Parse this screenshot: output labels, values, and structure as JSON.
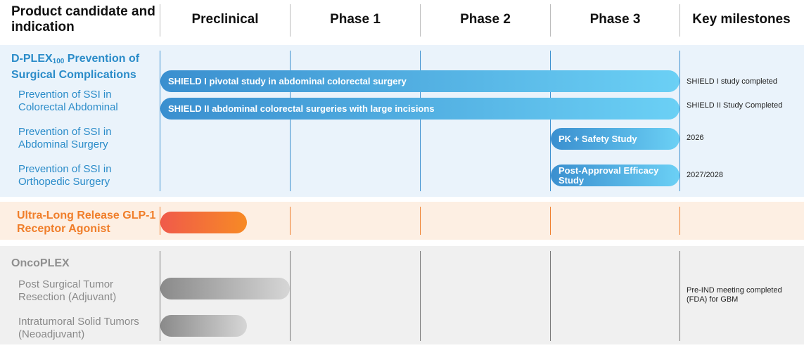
{
  "header": {
    "product": "Product candidate and indication",
    "phases": [
      "Preclinical",
      "Phase 1",
      "Phase 2",
      "Phase 3"
    ],
    "milestones": "Key milestones"
  },
  "colors": {
    "blue": "#2b8cc9",
    "orange": "#f07e2a",
    "gray": "#8f8f8f",
    "blue_band": "#eaf3fb",
    "orange_band": "#fdefe3",
    "gray_band": "#f0f0f0"
  },
  "chart_data": {
    "type": "table",
    "phases": [
      "Preclinical",
      "Phase 1",
      "Phase 2",
      "Phase 3"
    ],
    "groups": [
      {
        "title_main": "D-PLEX",
        "title_sub": "100",
        "title_rest": " Prevention of Surgical Complications",
        "rows": [
          {
            "indication": "Prevention of SSI in Colorectal Abdominal",
            "bars": [
              {
                "label": "SHIELD I pivotal study in abdominal colorectal surgery",
                "start_phase": 0,
                "end_phase": 4,
                "milestone": "SHIELD I study completed"
              },
              {
                "label": "SHIELD II abdominal colorectal surgeries with large incisions",
                "start_phase": 0,
                "end_phase": 4,
                "milestone": "SHIELD II Study Completed"
              }
            ]
          },
          {
            "indication": "Prevention of SSI in Abdominal Surgery",
            "bars": [
              {
                "label": "PK + Safety Study",
                "start_phase": 3,
                "end_phase": 4,
                "milestone": "2026"
              }
            ]
          },
          {
            "indication": "Prevention of SSI in Orthopedic Surgery",
            "bars": [
              {
                "label": "Post-Approval Efficacy Study",
                "start_phase": 3,
                "end_phase": 4,
                "milestone": "2027/2028"
              }
            ]
          }
        ]
      },
      {
        "title": "Ultra-Long Release GLP-1 Receptor Agonist",
        "rows": [
          {
            "indication": "",
            "bars": [
              {
                "label": "",
                "start_phase": 0,
                "end_phase": 0.67,
                "milestone": ""
              }
            ]
          }
        ]
      },
      {
        "title": "OncoPLEX",
        "rows": [
          {
            "indication": "Post Surgical Tumor Resection (Adjuvant)",
            "bars": [
              {
                "label": "",
                "start_phase": 0,
                "end_phase": 1,
                "milestone": "Pre-IND meeting completed (FDA) for GBM"
              }
            ]
          },
          {
            "indication": "Intratumoral Solid Tumors (Neoadjuvant)",
            "bars": [
              {
                "label": "",
                "start_phase": 0,
                "end_phase": 0.67,
                "milestone": ""
              }
            ]
          }
        ]
      }
    ]
  }
}
